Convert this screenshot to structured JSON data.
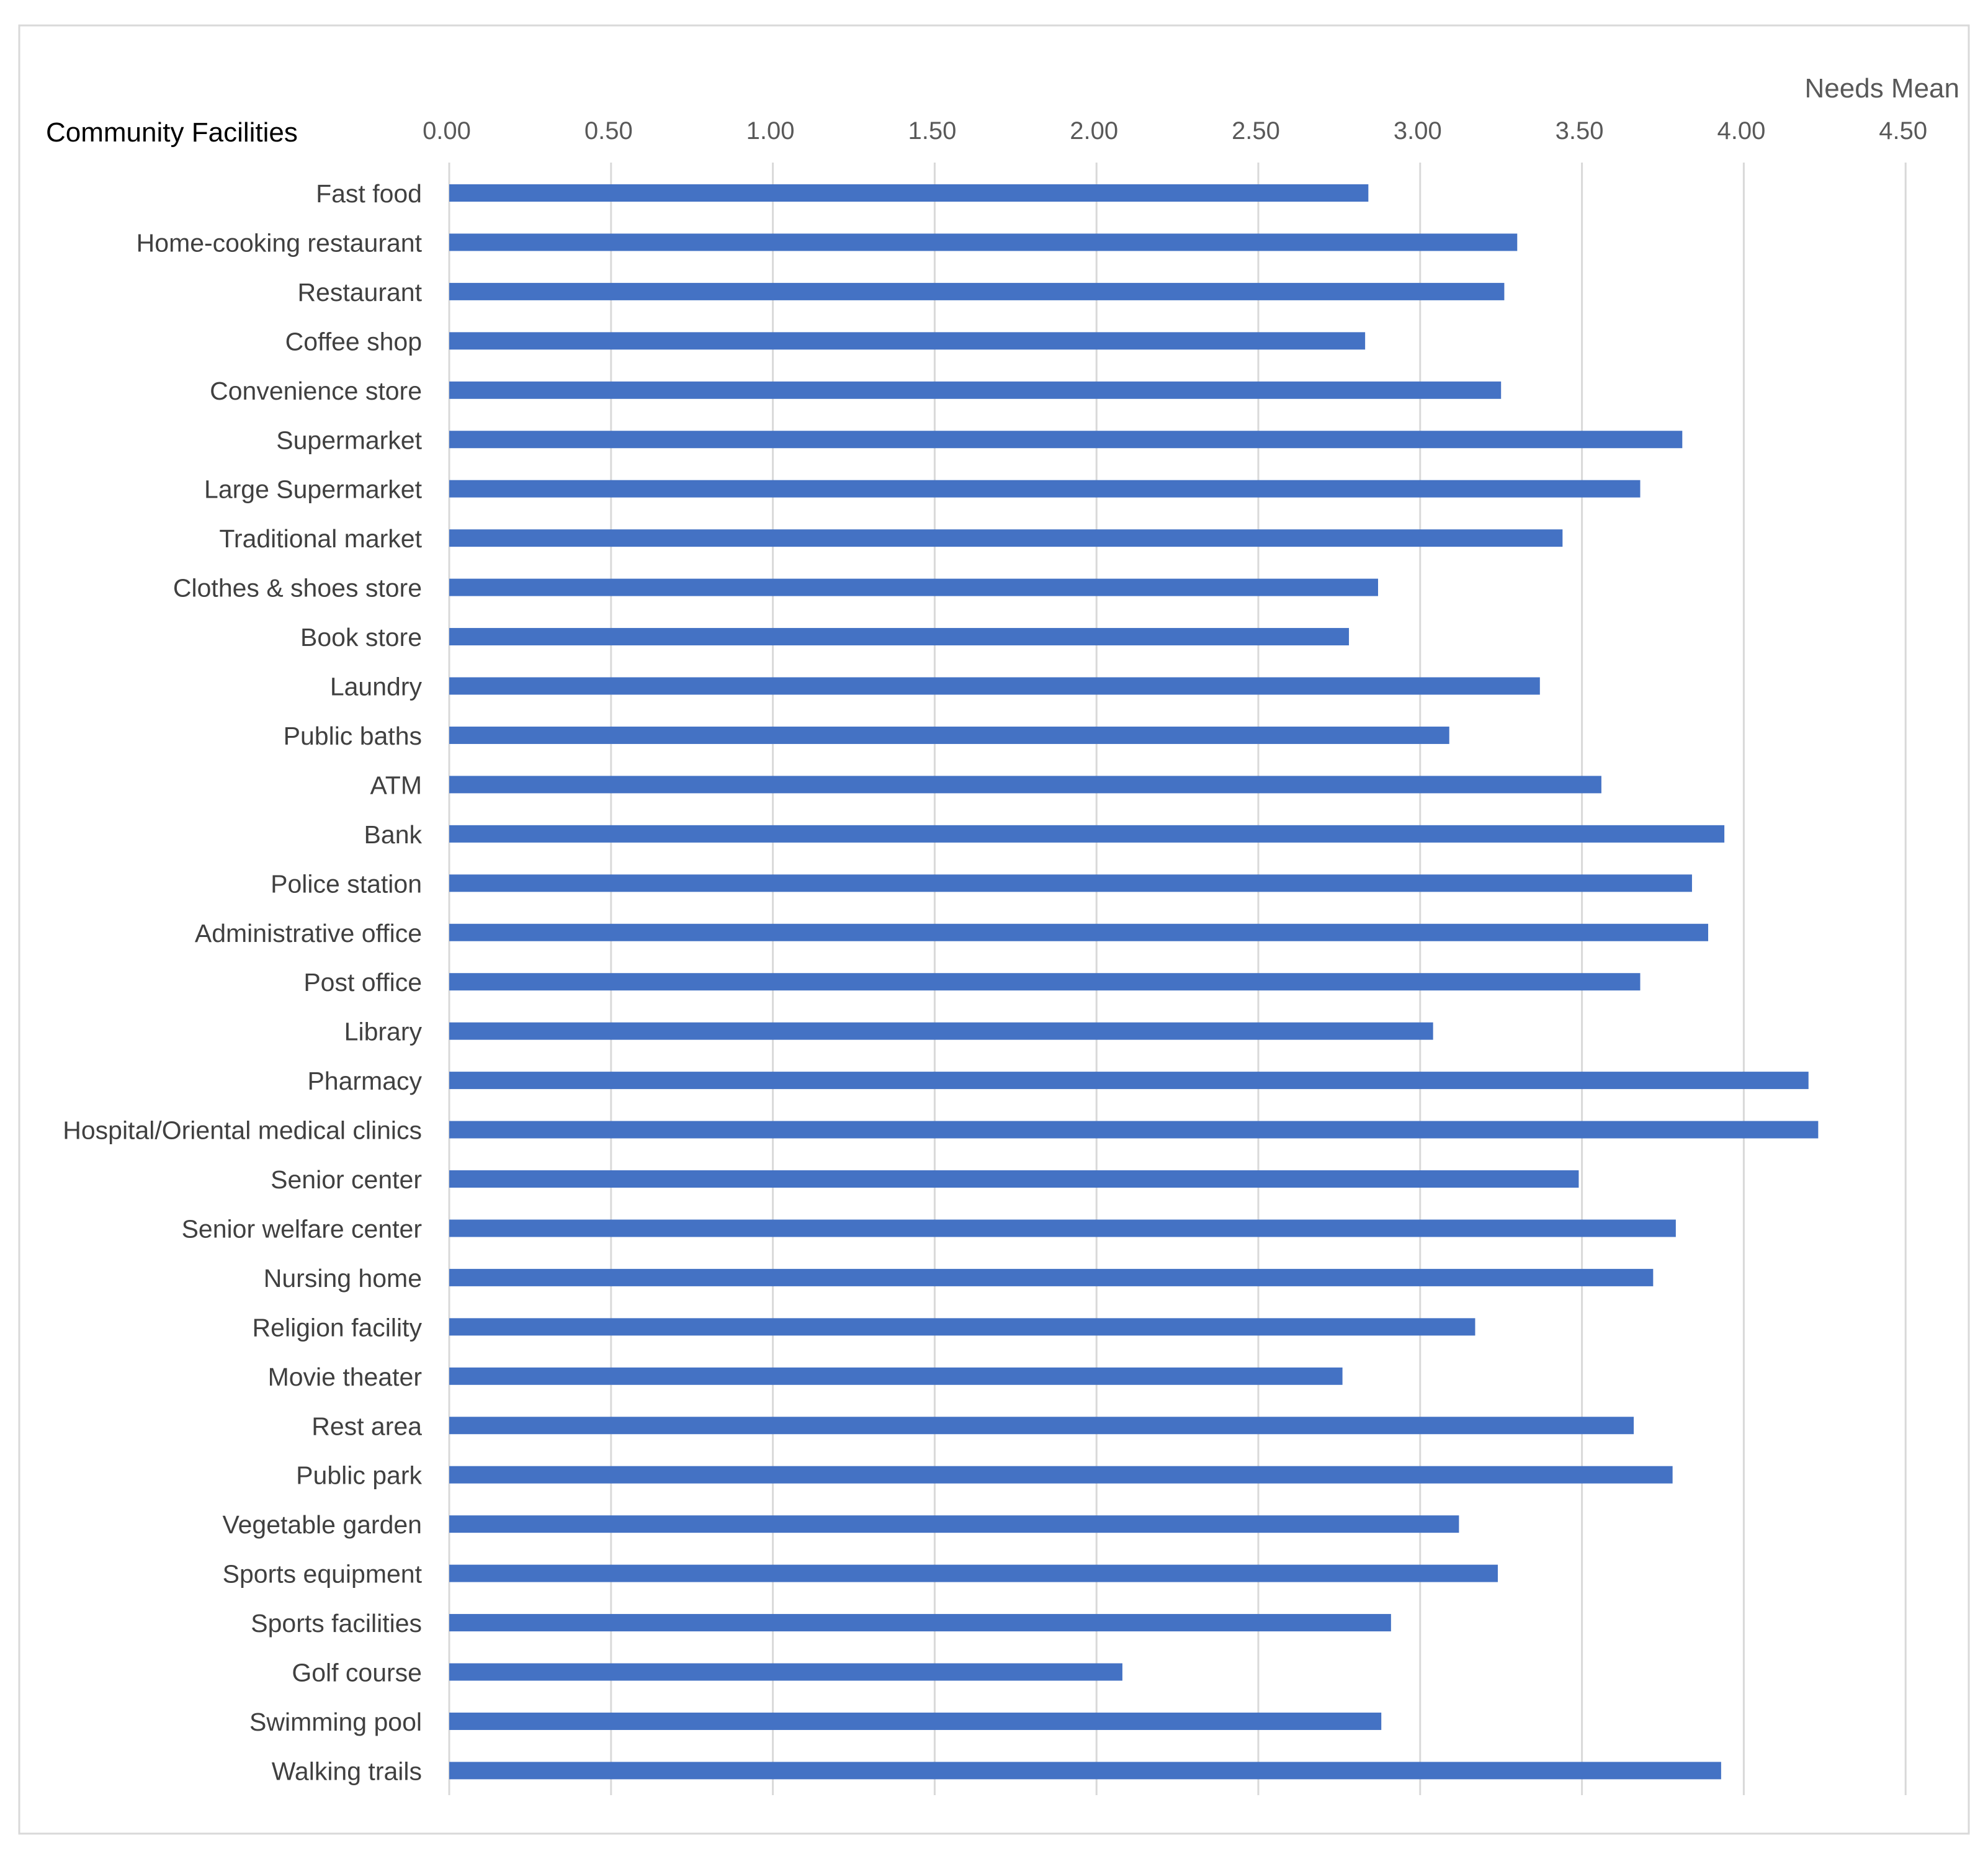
{
  "chart_data": {
    "type": "bar",
    "orientation": "horizontal",
    "title": "",
    "ylabel": "Community Facilities",
    "xlabel": "Needs Mean",
    "xlim": [
      0,
      4.5
    ],
    "tick_step": 0.5,
    "tick_labels": [
      "0.00",
      "0.50",
      "1.00",
      "1.50",
      "2.00",
      "2.50",
      "3.00",
      "3.50",
      "4.00",
      "4.50"
    ],
    "grid": true,
    "legend": "none",
    "bar_color": "#4472C4",
    "categories": [
      "Fast food",
      "Home-cooking restaurant",
      "Restaurant",
      "Coffee shop",
      "Convenience store",
      "Supermarket",
      "Large Supermarket",
      "Traditional market",
      "Clothes & shoes store",
      "Book store",
      "Laundry",
      "Public baths",
      "ATM",
      "Bank",
      "Police station",
      "Administrative office",
      "Post office",
      "Library",
      "Pharmacy",
      "Hospital/Oriental medical clinics",
      "Senior center",
      "Senior welfare center",
      "Nursing home",
      "Religion facility",
      "Movie theater",
      "Rest area",
      "Public park",
      "Vegetable garden",
      "Sports equipment",
      "Sports facilities",
      "Golf course",
      "Swimming pool",
      "Walking trails"
    ],
    "values": [
      2.84,
      3.3,
      3.26,
      2.83,
      3.25,
      3.81,
      3.68,
      3.44,
      2.87,
      2.78,
      3.37,
      3.09,
      3.56,
      3.94,
      3.84,
      3.89,
      3.68,
      3.04,
      4.2,
      4.23,
      3.49,
      3.79,
      3.72,
      3.17,
      2.76,
      3.66,
      3.78,
      3.12,
      3.24,
      2.91,
      2.08,
      2.88,
      3.93
    ]
  }
}
